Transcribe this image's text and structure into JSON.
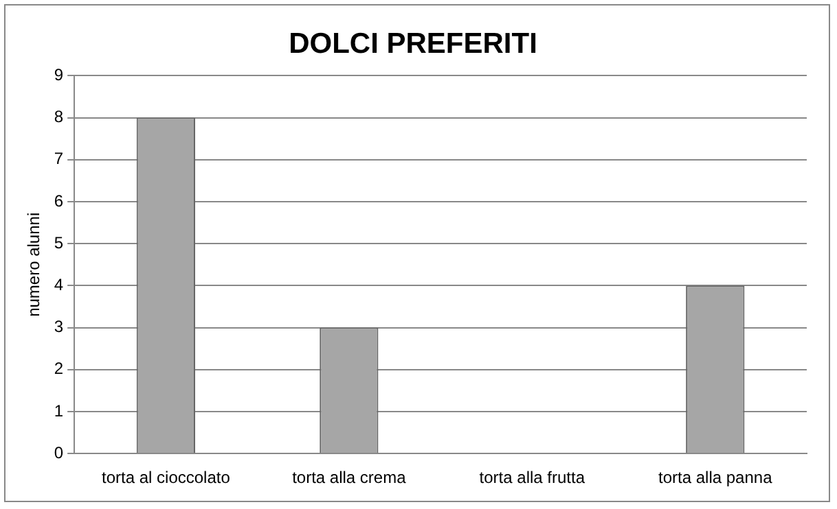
{
  "chart_data": {
    "type": "bar",
    "title": "DOLCI PREFERITI",
    "ylabel": "numero alunni",
    "categories": [
      "torta al cioccolato",
      "torta alla crema",
      "torta alla frutta",
      "torta alla panna"
    ],
    "values": [
      8,
      3,
      0,
      4
    ],
    "color": "#a6a6a6",
    "ylim": [
      0,
      9
    ],
    "yticks": [
      0,
      1,
      2,
      3,
      4,
      5,
      6,
      7,
      8,
      9
    ],
    "grid": "y",
    "legend": false
  }
}
